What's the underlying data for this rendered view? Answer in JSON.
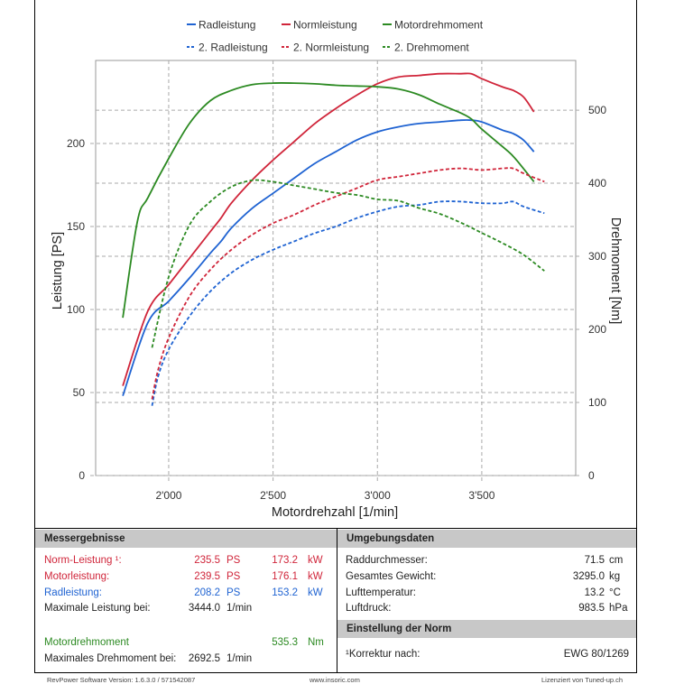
{
  "chart_data": {
    "type": "line",
    "xlabel": "Motordrehzahl [1/min]",
    "ylabel_left": "Leistung [PS]",
    "ylabel_right": "Drehmoment [Nm]",
    "xlim": [
      1650,
      3950
    ],
    "ylim_left": [
      0,
      250
    ],
    "ylim_right": [
      0,
      568
    ],
    "x_ticks": [
      2000,
      2500,
      3000,
      3500
    ],
    "x_tick_labels": [
      "2'000",
      "2'500",
      "3'000",
      "3'500"
    ],
    "y_left_ticks": [
      0,
      50,
      100,
      150,
      200
    ],
    "y_left_tick_labels": [
      "0",
      "50",
      "100",
      "150",
      "200"
    ],
    "y_right_ticks": [
      0,
      100,
      200,
      300,
      400,
      500
    ],
    "y_right_tick_labels": [
      "0",
      "100",
      "200",
      "300",
      "400",
      "500"
    ],
    "grid": true,
    "legend": [
      {
        "label": "Radleistung",
        "color": "#1f63d2",
        "dashed": false
      },
      {
        "label": "Normleistung",
        "color": "#d0253a",
        "dashed": false
      },
      {
        "label": "Motordrehmoment",
        "color": "#2c8a22",
        "dashed": false
      },
      {
        "label": "2. Radleistung",
        "color": "#1f63d2",
        "dashed": true
      },
      {
        "label": "2. Normleistung",
        "color": "#d0253a",
        "dashed": true
      },
      {
        "label": "2. Drehmoment",
        "color": "#2c8a22",
        "dashed": true
      }
    ],
    "series": [
      {
        "name": "Radleistung",
        "axis": "left",
        "color": "#1f63d2",
        "dashed": false,
        "x": [
          1780,
          1900,
          2000,
          2100,
          2200,
          2250,
          2300,
          2400,
          2500,
          2600,
          2700,
          2800,
          2900,
          3000,
          3100,
          3200,
          3300,
          3400,
          3450,
          3500,
          3600,
          3650,
          3700,
          3750
        ],
        "y": [
          48,
          92,
          105,
          119,
          134,
          141,
          149,
          161,
          170,
          179,
          188,
          195,
          202,
          207,
          210,
          212,
          213,
          214,
          214,
          213,
          208,
          206,
          202,
          195
        ]
      },
      {
        "name": "Normleistung",
        "axis": "left",
        "color": "#d0253a",
        "dashed": false,
        "x": [
          1780,
          1900,
          2000,
          2100,
          2200,
          2250,
          2300,
          2400,
          2500,
          2600,
          2700,
          2800,
          2900,
          3000,
          3100,
          3200,
          3300,
          3400,
          3450,
          3500,
          3600,
          3650,
          3700,
          3750
        ],
        "y": [
          54,
          99,
          115,
          131,
          147,
          155,
          164,
          178,
          190,
          201,
          212,
          221,
          229,
          236,
          240,
          241,
          242,
          242,
          242,
          239,
          234,
          232,
          228,
          219
        ]
      },
      {
        "name": "Motordrehmoment",
        "axis": "right",
        "color": "#2c8a22",
        "dashed": false,
        "x": [
          1780,
          1850,
          1900,
          2000,
          2100,
          2200,
          2300,
          2400,
          2500,
          2600,
          2700,
          2800,
          2900,
          3000,
          3100,
          3200,
          3300,
          3400,
          3450,
          3500,
          3600,
          3650,
          3700,
          3750
        ],
        "y": [
          216,
          348,
          380,
          434,
          482,
          513,
          527,
          535,
          537,
          537,
          536,
          534,
          533,
          532,
          529,
          521,
          508,
          496,
          488,
          474,
          450,
          437,
          420,
          402
        ]
      },
      {
        "name": "2. Radleistung",
        "axis": "left",
        "color": "#1f63d2",
        "dashed": true,
        "x": [
          1920,
          1950,
          2000,
          2100,
          2200,
          2300,
          2400,
          2500,
          2600,
          2700,
          2800,
          2900,
          3000,
          3100,
          3200,
          3300,
          3400,
          3500,
          3600,
          3650,
          3700,
          3800
        ],
        "y": [
          42,
          60,
          76,
          96,
          111,
          122,
          130,
          136,
          141,
          146,
          150,
          155,
          159,
          162,
          163,
          165,
          165,
          164,
          164,
          165,
          162,
          158
        ]
      },
      {
        "name": "2. Normleistung",
        "axis": "left",
        "color": "#d0253a",
        "dashed": true,
        "x": [
          1920,
          1950,
          2000,
          2100,
          2200,
          2300,
          2400,
          2500,
          2600,
          2700,
          2800,
          2900,
          3000,
          3100,
          3200,
          3300,
          3400,
          3500,
          3600,
          3650,
          3700,
          3800
        ],
        "y": [
          46,
          64,
          83,
          108,
          124,
          136,
          145,
          152,
          157,
          163,
          168,
          173,
          178,
          180,
          182,
          184,
          185,
          184,
          185,
          185,
          182,
          177
        ]
      },
      {
        "name": "2. Drehmoment",
        "axis": "right",
        "color": "#2c8a22",
        "dashed": true,
        "x": [
          1920,
          2000,
          2100,
          2200,
          2300,
          2400,
          2500,
          2600,
          2700,
          2800,
          2900,
          3000,
          3100,
          3200,
          3300,
          3400,
          3500,
          3600,
          3700,
          3800
        ],
        "y": [
          175,
          272,
          343,
          375,
          395,
          404,
          402,
          397,
          392,
          387,
          384,
          378,
          376,
          366,
          358,
          346,
          332,
          318,
          302,
          280
        ]
      }
    ]
  },
  "results": {
    "header": "Messergebnisse",
    "rows": [
      {
        "label": "Norm-Leistung ¹:",
        "v1": "235.5",
        "u1": "PS",
        "v2": "173.2",
        "u2": "kW",
        "cls": "red"
      },
      {
        "label": "Motorleistung:",
        "v1": "239.5",
        "u1": "PS",
        "v2": "176.1",
        "u2": "kW",
        "cls": "red"
      },
      {
        "label": "Radleistung:",
        "v1": "208.2",
        "u1": "PS",
        "v2": "153.2",
        "u2": "kW",
        "cls": "blue"
      },
      {
        "label": "Maximale Leistung bei:",
        "v1": "3444.0",
        "u1": "1/min",
        "v2": "",
        "u2": "",
        "cls": ""
      },
      {
        "label": "Motordrehmoment",
        "v1": "",
        "u1": "",
        "v2": "535.3",
        "u2": "Nm",
        "cls": "green"
      },
      {
        "label": "Maximales Drehmoment bei:",
        "v1": "2692.5",
        "u1": "1/min",
        "v2": "",
        "u2": "",
        "cls": ""
      }
    ]
  },
  "environment": {
    "header": "Umgebungsdaten",
    "rows": [
      {
        "label": "Raddurchmesser:",
        "value": "71.5",
        "unit": "cm"
      },
      {
        "label": "Gesamtes Gewicht:",
        "value": "3295.0",
        "unit": "kg"
      },
      {
        "label": "Lufttemperatur:",
        "value": "13.2",
        "unit": "°C"
      },
      {
        "label": "Luftdruck:",
        "value": "983.5",
        "unit": "hPa"
      }
    ]
  },
  "norm": {
    "header": "Einstellung der Norm",
    "label": "¹Korrektur nach:",
    "value": "EWG 80/1269"
  },
  "footer": {
    "left": "RevPower Software Version: 1.6.3.0 / 571542087",
    "center": "www.insoric.com",
    "right": "Lizenziert von Tuned-up.ch"
  }
}
